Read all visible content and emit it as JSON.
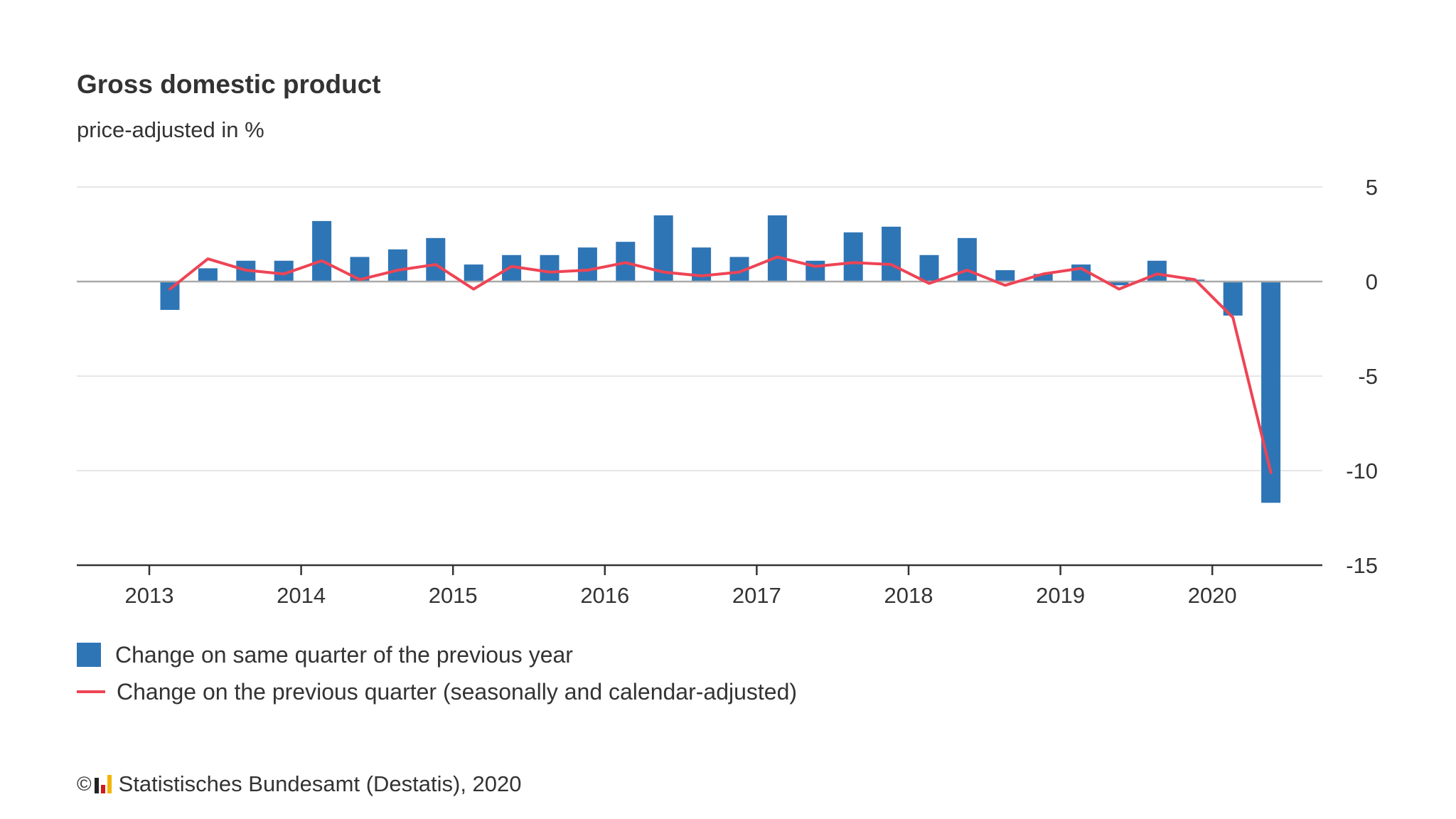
{
  "header": {
    "title": "Gross domestic product",
    "subtitle": "price-adjusted in %"
  },
  "legend": {
    "bars_label": "Change on same quarter of the previous year",
    "line_label": "Change on the previous quarter (seasonally and calendar-adjusted)"
  },
  "footer": {
    "copyright_symbol": "©",
    "source": "Statistisches Bundesamt (Destatis), 2020"
  },
  "colors": {
    "bar": "#2e75b6",
    "line": "#ee4455",
    "grid": "#dddddd",
    "zero_line": "#aaaaaa",
    "axis": "#333333"
  },
  "chart_data": {
    "type": "bar",
    "title": "Gross domestic product",
    "subtitle": "price-adjusted in %",
    "xlabel": "",
    "ylabel": "",
    "ylim": [
      -15,
      5
    ],
    "yticks": [
      5,
      0,
      -5,
      -10,
      -15
    ],
    "ytick_labels": [
      "5",
      "0",
      "-5",
      "-10",
      "-15"
    ],
    "xticks": [
      "2013",
      "2014",
      "2015",
      "2016",
      "2017",
      "2018",
      "2019",
      "2020"
    ],
    "grid": true,
    "legend_position": "bottom-left",
    "categories": [
      "2013 Q1",
      "2013 Q2",
      "2013 Q3",
      "2013 Q4",
      "2014 Q1",
      "2014 Q2",
      "2014 Q3",
      "2014 Q4",
      "2015 Q1",
      "2015 Q2",
      "2015 Q3",
      "2015 Q4",
      "2016 Q1",
      "2016 Q2",
      "2016 Q3",
      "2016 Q4",
      "2017 Q1",
      "2017 Q2",
      "2017 Q3",
      "2017 Q4",
      "2018 Q1",
      "2018 Q2",
      "2018 Q3",
      "2018 Q4",
      "2019 Q1",
      "2019 Q2",
      "2019 Q3",
      "2019 Q4",
      "2020 Q1",
      "2020 Q2"
    ],
    "series": [
      {
        "name": "Change on same quarter of the previous year",
        "type": "bar",
        "values": [
          -1.5,
          0.7,
          1.1,
          1.1,
          3.2,
          1.3,
          1.7,
          2.3,
          0.9,
          1.4,
          1.4,
          1.8,
          2.1,
          3.5,
          1.8,
          1.3,
          3.5,
          1.1,
          2.6,
          2.9,
          1.4,
          2.3,
          0.6,
          0.4,
          0.9,
          -0.2,
          1.1,
          0.1,
          -1.8,
          -11.7
        ]
      },
      {
        "name": "Change on the previous quarter (seasonally and calendar-adjusted)",
        "type": "line",
        "values": [
          -0.4,
          1.2,
          0.6,
          0.4,
          1.1,
          0.1,
          0.6,
          0.9,
          -0.4,
          0.8,
          0.5,
          0.6,
          1.0,
          0.5,
          0.3,
          0.5,
          1.3,
          0.8,
          1.0,
          0.9,
          -0.1,
          0.6,
          -0.2,
          0.4,
          0.7,
          -0.4,
          0.4,
          0.1,
          -1.9,
          -10.1
        ]
      }
    ]
  }
}
